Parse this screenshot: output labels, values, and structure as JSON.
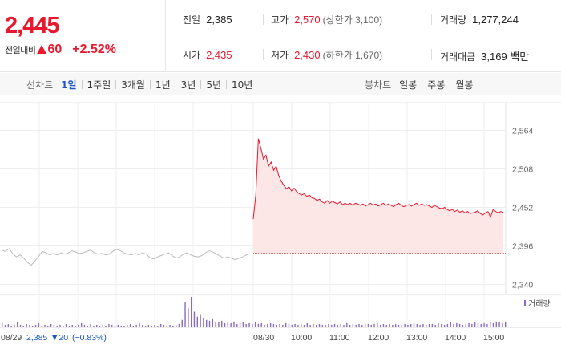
{
  "summary": {
    "price": "2,445",
    "change_label": "전일대비",
    "change_value": "60",
    "change_pct": "+2.52%",
    "stats": {
      "prev_close_label": "전일",
      "prev_close": "2,385",
      "high_label": "고가",
      "high": "2,570",
      "upper_limit": "(상한가 3,100)",
      "volume_label": "거래량",
      "volume": "1,277,244",
      "open_label": "시가",
      "open": "2,435",
      "low_label": "저가",
      "low": "2,430",
      "lower_limit": "(하한가 1,670)",
      "amount_label": "거래대금",
      "amount": "3,169 백만"
    }
  },
  "toolbar": {
    "line_label": "선차트",
    "line_periods": [
      "1일",
      "1주일",
      "3개월",
      "1년",
      "3년",
      "5년",
      "10년"
    ],
    "active_period": "1일",
    "candle_label": "봉차트",
    "candle_periods": [
      "일봉",
      "주봉",
      "월봉"
    ]
  },
  "colors": {
    "up": "#e8182e",
    "down": "#1c56c9",
    "accent": "#1c56c9",
    "fill": "#fde6e6",
    "prev_line": "#bbbbbb",
    "volume_bar": "#8a6bbf"
  },
  "chart_data": {
    "type": "line",
    "y_ticks": [
      "2,564",
      "2,508",
      "2,452",
      "2,396",
      "2,340"
    ],
    "ylim": [
      2340,
      2564
    ],
    "x_ticks": [
      "08/29",
      "08/30",
      "10:00",
      "11:00",
      "12:00",
      "13:00",
      "14:00",
      "15:00"
    ],
    "prev_day_label": "08/29",
    "prev_day_close": "2,385",
    "prev_day_change": "▼20",
    "prev_day_change_pct": "(−0.83%)",
    "volume_legend": "거래량",
    "series": [
      {
        "name": "08/29",
        "values": [
          2390,
          2388,
          2392,
          2385,
          2380,
          2383,
          2378,
          2372,
          2368,
          2374,
          2381,
          2388,
          2386,
          2383,
          2385,
          2383,
          2386,
          2384,
          2386,
          2389,
          2387,
          2385,
          2386,
          2388,
          2390,
          2386,
          2384,
          2385,
          2383,
          2384,
          2388,
          2391,
          2389,
          2386,
          2384,
          2383,
          2385,
          2383,
          2386,
          2384,
          2379,
          2377,
          2380,
          2382,
          2384,
          2386,
          2382,
          2378,
          2380,
          2384,
          2386,
          2383,
          2381,
          2380,
          2382,
          2386,
          2389,
          2387,
          2384,
          2381,
          2378,
          2380,
          2378,
          2376,
          2378,
          2380,
          2383,
          2385
        ]
      },
      {
        "name": "08/30",
        "values": [
          2435,
          2470,
          2552,
          2538,
          2522,
          2528,
          2512,
          2518,
          2506,
          2512,
          2498,
          2490,
          2484,
          2479,
          2482,
          2476,
          2480,
          2475,
          2472,
          2470,
          2472,
          2468,
          2470,
          2466,
          2465,
          2462,
          2464,
          2460,
          2458,
          2462,
          2458,
          2461,
          2459,
          2457,
          2460,
          2456,
          2458,
          2456,
          2458,
          2455,
          2458,
          2457,
          2455,
          2457,
          2454,
          2456,
          2458,
          2455,
          2457,
          2454,
          2456,
          2458,
          2455,
          2457,
          2455,
          2453,
          2456,
          2458,
          2455,
          2453,
          2455,
          2456,
          2454,
          2456,
          2458,
          2455,
          2457,
          2455,
          2456,
          2454,
          2452,
          2455,
          2453,
          2451,
          2450,
          2452,
          2449,
          2447,
          2449,
          2446,
          2448,
          2445,
          2447,
          2444,
          2446,
          2443,
          2444,
          2445,
          2447,
          2443,
          2441,
          2444,
          2446,
          2438,
          2449,
          2446,
          2444,
          2446,
          2445
        ]
      }
    ],
    "baseline": 2385,
    "volume": [
      4,
      2,
      3,
      1,
      2,
      5,
      2,
      1,
      3,
      2,
      1,
      2,
      4,
      1,
      2,
      1,
      3,
      2,
      1,
      2,
      1,
      3,
      1,
      2,
      1,
      2,
      4,
      2,
      1,
      3,
      1,
      2,
      1,
      2,
      1,
      3,
      2,
      1,
      2,
      1,
      1,
      2,
      3,
      1,
      2,
      4,
      2,
      1,
      2,
      1,
      2,
      1,
      3,
      2,
      1,
      2,
      1,
      2,
      3,
      8,
      30,
      22,
      36,
      18,
      12,
      14,
      10,
      8,
      7,
      9,
      6,
      5,
      7,
      4,
      5,
      4,
      6,
      3,
      4,
      5,
      3,
      4,
      3,
      5,
      3,
      4,
      2,
      3,
      4,
      3,
      2,
      3,
      2,
      4,
      3,
      2,
      3,
      2,
      3,
      2,
      4,
      2,
      3,
      2,
      3,
      2,
      2,
      3,
      2,
      3,
      2,
      3,
      2,
      4,
      2,
      3,
      2,
      3,
      2,
      3,
      3,
      2,
      3,
      4,
      2,
      3,
      2,
      3,
      2,
      3,
      2,
      2,
      3,
      2,
      3,
      4,
      3,
      2,
      3,
      2,
      3,
      3,
      2,
      4,
      3,
      2,
      3,
      5,
      3,
      4,
      3,
      2,
      3,
      4,
      3,
      5,
      4,
      3,
      4,
      3,
      5,
      4,
      6,
      5,
      4,
      6
    ]
  }
}
